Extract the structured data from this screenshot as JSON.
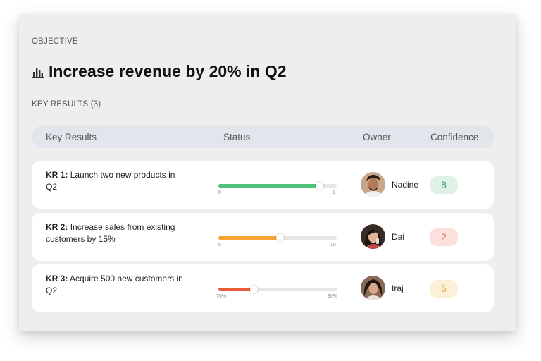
{
  "objective": {
    "section_label": "OBJECTIVE",
    "title": "Increase revenue by 20% in Q2",
    "icon": "bar-chart-icon"
  },
  "key_results_label": "KEY RESULTS (3)",
  "table_header": {
    "key_results": "Key Results",
    "status": "Status",
    "owner": "Owner",
    "confidence": "Confidence"
  },
  "rows": [
    {
      "kr_label": "KR 1:",
      "kr_text": "Launch two new products in Q2",
      "progress": 0.85,
      "tick_start": "0",
      "tick_end": "1",
      "color": "#4fc27a",
      "owner": "Nadine",
      "confidence": "8",
      "badge_bg": "#dff2e5",
      "badge_fg": "#3f9c63"
    },
    {
      "kr_label": "KR 2:",
      "kr_text": "Increase sales from existing customers by 15%",
      "progress": 0.52,
      "tick_start": "5",
      "tick_end": "10",
      "color": "#f6a531",
      "owner": "Dai",
      "confidence": "2",
      "badge_bg": "#fbe0db",
      "badge_fg": "#e0705a"
    },
    {
      "kr_label": "KR 3:",
      "kr_text": "Acquire 500 new customers in Q2",
      "progress": 0.3,
      "tick_start": "70%",
      "tick_end": "90%",
      "color": "#ec5a3a",
      "owner": "Iraj",
      "confidence": "5",
      "badge_bg": "#fdf0d8",
      "badge_fg": "#e2a640"
    }
  ]
}
